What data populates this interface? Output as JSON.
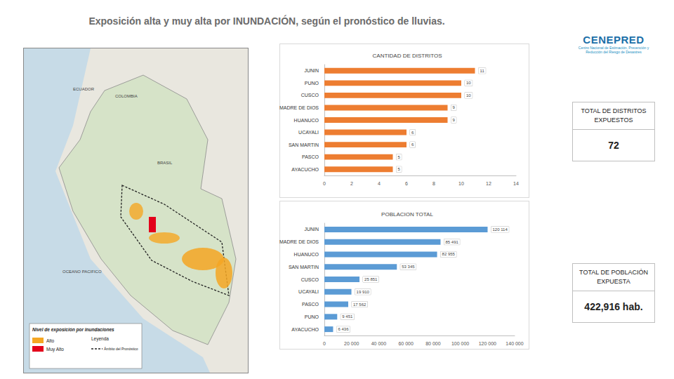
{
  "title": "Exposición alta y muy alta por INUNDACIÓN, según el pronóstico de lluvias.",
  "logo": {
    "name": "CENEPRED",
    "subtitle": "Centro Nacional de Estimación, Prevención y Reducción del Riesgo de Desastres"
  },
  "chart_data": [
    {
      "type": "bar",
      "title": "CANTIDAD DE DISTRITOS",
      "orientation": "horizontal",
      "categories": [
        "JUNIN",
        "PUNO",
        "CUSCO",
        "MADRE DE DIOS",
        "HUANUCO",
        "UCAYALI",
        "SAN MARTIN",
        "PASCO",
        "AYACUCHO"
      ],
      "values": [
        11,
        10,
        10,
        9,
        9,
        6,
        6,
        5,
        5
      ],
      "color": "#ed7d31",
      "xlim": [
        0,
        14
      ],
      "xticks": [
        0,
        2,
        4,
        6,
        8,
        10,
        12,
        14
      ],
      "grid": false,
      "data_labels": true
    },
    {
      "type": "bar",
      "title": "POBLACION TOTAL",
      "orientation": "horizontal",
      "categories": [
        "JUNIN",
        "MADRE DE DIOS",
        "HUANUCO",
        "SAN MARTIN",
        "CUSCO",
        "UCAYALI",
        "PASCO",
        "PUNO",
        "AYACUCHO"
      ],
      "values": [
        120114,
        85491,
        82955,
        53345,
        25851,
        19910,
        17562,
        9451,
        6436
      ],
      "value_labels": [
        "120 114",
        "85 491",
        "82 955",
        "53 345",
        "25 851",
        "19 910",
        "17 562",
        "9 451",
        "6 436"
      ],
      "color": "#5b9bd5",
      "xlim": [
        0,
        140000
      ],
      "xticks": [
        0,
        {
          "value": 20000,
          "label": "20 000"
        },
        {
          "value": 40000,
          "label": "40 000"
        },
        {
          "value": 60000,
          "label": "60 000"
        },
        {
          "value": 80000,
          "label": "80 000"
        },
        {
          "value": 100000,
          "label": "100 000"
        },
        {
          "value": 120000,
          "label": "120 000"
        },
        {
          "value": 140000,
          "label": "140 000"
        }
      ],
      "grid": false,
      "data_labels": true
    }
  ],
  "totals": [
    {
      "label": "TOTAL DE DISTRITOS EXPUESTOS",
      "value": "72"
    },
    {
      "label": "TOTAL DE POBLACIÓN EXPUESTA",
      "value": "422,916 hab."
    }
  ],
  "map": {
    "labels": [
      "COLOMBIA",
      "ECUADOR",
      "BRASIL",
      "OCEANO PACIFICO"
    ],
    "legend_title": "Nivel de exposición por inundaciones",
    "legend": [
      {
        "label": "Alto",
        "color": "#f5a623"
      },
      {
        "label": "Muy Alto",
        "color": "#e3001b"
      }
    ],
    "scope_title": "Leyenda",
    "scope_label": "Ámbito del Pronóstico"
  }
}
